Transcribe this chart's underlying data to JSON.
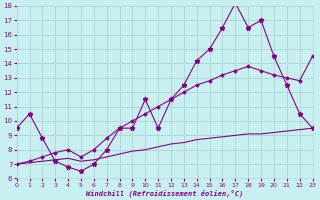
{
  "xlabel": "Windchill (Refroidissement éolien,°C)",
  "bg_color": "#c8f0f0",
  "grid_color": "#b0d8d8",
  "line_color": "#880088",
  "xlim": [
    0,
    23
  ],
  "ylim": [
    6,
    18
  ],
  "xticks": [
    0,
    1,
    2,
    3,
    4,
    5,
    6,
    7,
    8,
    9,
    10,
    11,
    12,
    13,
    14,
    15,
    16,
    17,
    18,
    19,
    20,
    21,
    22,
    23
  ],
  "yticks": [
    6,
    7,
    8,
    9,
    10,
    11,
    12,
    13,
    14,
    15,
    16,
    17,
    18
  ],
  "main_x": [
    0,
    1,
    2,
    3,
    4,
    5,
    6,
    7,
    8,
    9,
    10,
    11,
    12,
    13,
    14,
    15,
    16,
    17,
    18,
    19,
    20,
    21,
    22,
    23
  ],
  "main_y": [
    9.5,
    10.5,
    8.8,
    7.2,
    6.8,
    6.5,
    7.0,
    8.0,
    9.5,
    9.5,
    11.5,
    9.5,
    11.5,
    12.5,
    14.2,
    15.0,
    16.5,
    18.2,
    16.5,
    17.0,
    14.5,
    12.5,
    10.5,
    9.5
  ],
  "upper_x": [
    0,
    1,
    2,
    3,
    4,
    5,
    6,
    7,
    8,
    9,
    10,
    11,
    12,
    13,
    14,
    15,
    16,
    17,
    18,
    19,
    20,
    21,
    22,
    23
  ],
  "upper_y": [
    7.0,
    7.2,
    7.5,
    7.8,
    8.0,
    7.5,
    8.0,
    8.8,
    9.5,
    10.0,
    10.5,
    11.0,
    11.5,
    12.0,
    12.5,
    12.8,
    13.2,
    13.5,
    13.8,
    13.5,
    13.2,
    13.0,
    12.8,
    14.5
  ],
  "lower_x": [
    0,
    1,
    2,
    3,
    4,
    5,
    6,
    7,
    8,
    9,
    10,
    11,
    12,
    13,
    14,
    15,
    16,
    17,
    18,
    19,
    20,
    21,
    22,
    23
  ],
  "lower_y": [
    7.0,
    7.1,
    7.2,
    7.3,
    7.4,
    7.2,
    7.3,
    7.5,
    7.7,
    7.9,
    8.0,
    8.2,
    8.4,
    8.5,
    8.7,
    8.8,
    8.9,
    9.0,
    9.1,
    9.1,
    9.2,
    9.3,
    9.4,
    9.5
  ]
}
